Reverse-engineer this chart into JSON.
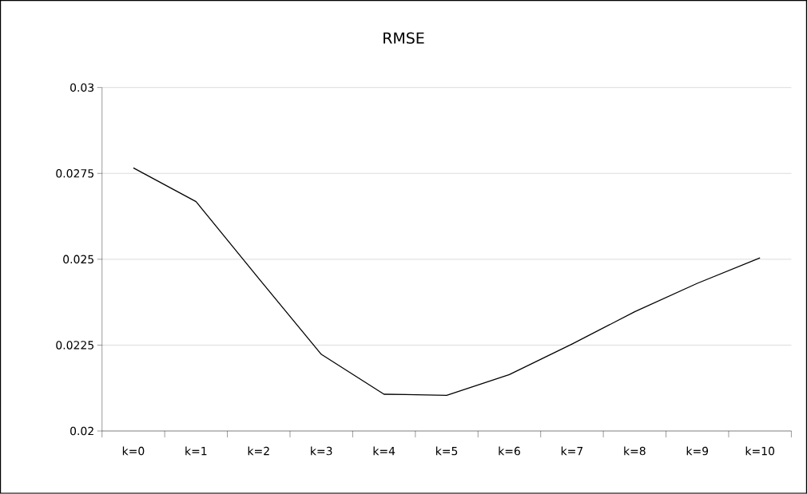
{
  "chart_data": {
    "type": "line",
    "title": "RMSE",
    "categories": [
      "k=0",
      "k=1",
      "k=2",
      "k=3",
      "k=4",
      "k=5",
      "k=6",
      "k=7",
      "k=8",
      "k=9",
      "k=10"
    ],
    "values": [
      0.02766,
      0.02668,
      0.02444,
      0.02223,
      0.02107,
      0.02104,
      0.02164,
      0.02253,
      0.02347,
      0.0243,
      0.02504
    ],
    "color": "#000000",
    "ylim": [
      0.02,
      0.03
    ],
    "yticks": [
      0.02,
      0.0225,
      0.025,
      0.0275,
      0.03
    ],
    "grid": "y"
  }
}
